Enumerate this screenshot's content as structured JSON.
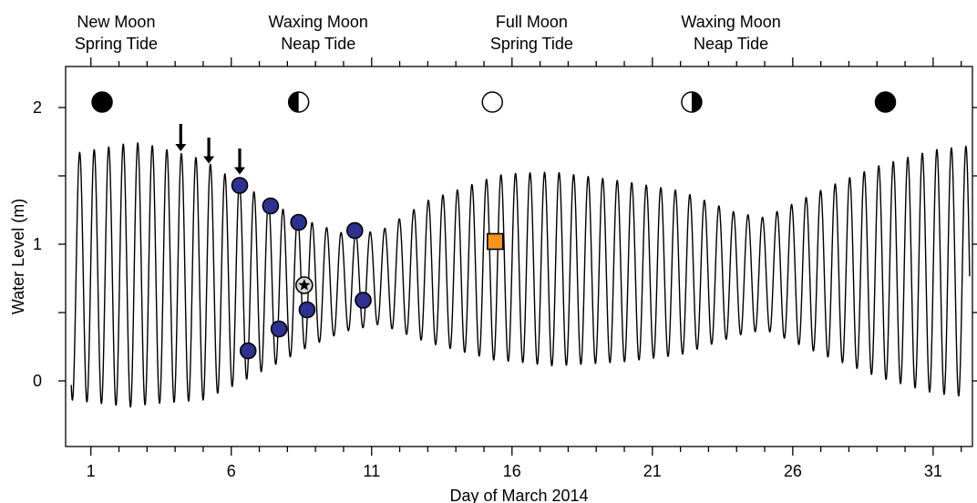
{
  "chart_data": {
    "type": "line",
    "xlabel": "Day of March 2014",
    "ylabel": "Water Level (m)",
    "xlim": [
      0.1,
      32.4
    ],
    "ylim": [
      -0.48,
      2.3
    ],
    "x_ticks": [
      1,
      6,
      11,
      16,
      21,
      26,
      31
    ],
    "y_ticks": [
      0,
      1,
      2
    ],
    "phase_labels": [
      {
        "x": 1.9,
        "line1": "New Moon",
        "line2": "Spring Tide"
      },
      {
        "x": 9.1,
        "line1": "Waxing Moon",
        "line2": "Neap Tide"
      },
      {
        "x": 16.7,
        "line1": "Full Moon",
        "line2": "Spring Tide"
      },
      {
        "x": 23.8,
        "line1": "Waxing Moon",
        "line2": "Neap Tide"
      }
    ],
    "moon_symbols": [
      {
        "x": 1.4,
        "y": 2.04,
        "phase": "new"
      },
      {
        "x": 8.4,
        "y": 2.04,
        "phase": "first-quarter"
      },
      {
        "x": 15.3,
        "y": 2.04,
        "phase": "full"
      },
      {
        "x": 22.4,
        "y": 2.04,
        "phase": "last-quarter"
      },
      {
        "x": 29.3,
        "y": 2.04,
        "phase": "new"
      }
    ],
    "tide": {
      "x_start": 0.3,
      "x_end": 32.3,
      "period_days": 0.5175,
      "phase_x": 0.6,
      "amplitude_knots": [
        [
          0.3,
          0.9
        ],
        [
          2.5,
          0.97
        ],
        [
          5.0,
          0.88
        ],
        [
          7.0,
          0.65
        ],
        [
          8.5,
          0.48
        ],
        [
          10.0,
          0.36
        ],
        [
          11.3,
          0.34
        ],
        [
          13.0,
          0.52
        ],
        [
          15.5,
          0.68
        ],
        [
          17.5,
          0.71
        ],
        [
          20.0,
          0.66
        ],
        [
          22.0,
          0.6
        ],
        [
          24.0,
          0.45
        ],
        [
          25.0,
          0.41
        ],
        [
          27.0,
          0.6
        ],
        [
          29.0,
          0.77
        ],
        [
          31.0,
          0.89
        ],
        [
          32.3,
          0.92
        ]
      ],
      "mean_knots": [
        [
          0.3,
          0.76
        ],
        [
          3.0,
          0.78
        ],
        [
          6.0,
          0.72
        ],
        [
          8.0,
          0.7
        ],
        [
          10.0,
          0.72
        ],
        [
          13.0,
          0.8
        ],
        [
          16.0,
          0.83
        ],
        [
          20.0,
          0.8
        ],
        [
          24.0,
          0.78
        ],
        [
          28.0,
          0.8
        ],
        [
          32.3,
          0.8
        ]
      ]
    },
    "series": [
      {
        "marker": "circle",
        "color": "#2e3192",
        "points": [
          [
            6.3,
            1.43
          ],
          [
            6.6,
            0.22
          ],
          [
            7.4,
            1.28
          ],
          [
            7.7,
            0.38
          ],
          [
            8.4,
            1.16
          ],
          [
            8.7,
            0.52
          ],
          [
            10.4,
            1.1
          ],
          [
            10.7,
            0.59
          ]
        ]
      },
      {
        "marker": "circle-star",
        "color": "#d9d9d9",
        "points": [
          [
            8.6,
            0.7
          ]
        ]
      },
      {
        "marker": "square",
        "color": "#f7941d",
        "points": [
          [
            15.4,
            1.02
          ]
        ]
      }
    ],
    "arrows": [
      {
        "x": 4.2,
        "y_from": 1.88,
        "y_to": 1.68
      },
      {
        "x": 5.2,
        "y_from": 1.78,
        "y_to": 1.59
      },
      {
        "x": 6.3,
        "y_from": 1.7,
        "y_to": 1.51
      }
    ]
  }
}
